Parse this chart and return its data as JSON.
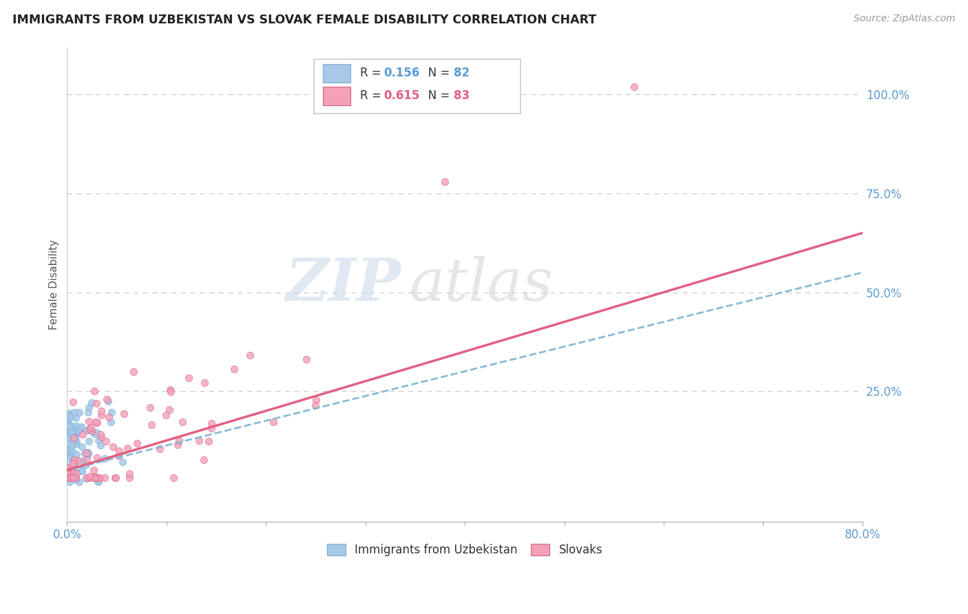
{
  "title": "IMMIGRANTS FROM UZBEKISTAN VS SLOVAK FEMALE DISABILITY CORRELATION CHART",
  "source": "Source: ZipAtlas.com",
  "ylabel": "Female Disability",
  "ylabel_right": [
    "100.0%",
    "75.0%",
    "50.0%",
    "25.0%"
  ],
  "ylabel_right_vals": [
    1.0,
    0.75,
    0.5,
    0.25
  ],
  "series1_label": "Immigrants from Uzbekistan",
  "series2_label": "Slovaks",
  "R1": 0.156,
  "N1": 82,
  "R2": 0.615,
  "N2": 83,
  "color1": "#a8c8e8",
  "color2": "#f4a0b8",
  "edge1": "#7aaed4",
  "edge2": "#d06080",
  "trendline1_color": "#88bbd8",
  "trendline2_color": "#e06080",
  "watermark_zip": "ZIP",
  "watermark_atlas": "atlas",
  "watermark_color_zip": "#c8d8e8",
  "watermark_color_atlas": "#c8c8c8",
  "xlim": [
    0.0,
    0.8
  ],
  "ylim": [
    -0.08,
    1.12
  ],
  "grid_color": "#cccccc",
  "background_color": "#ffffff",
  "seed": 99,
  "tick_color": "#5b9bd5",
  "label_color": "#555555"
}
